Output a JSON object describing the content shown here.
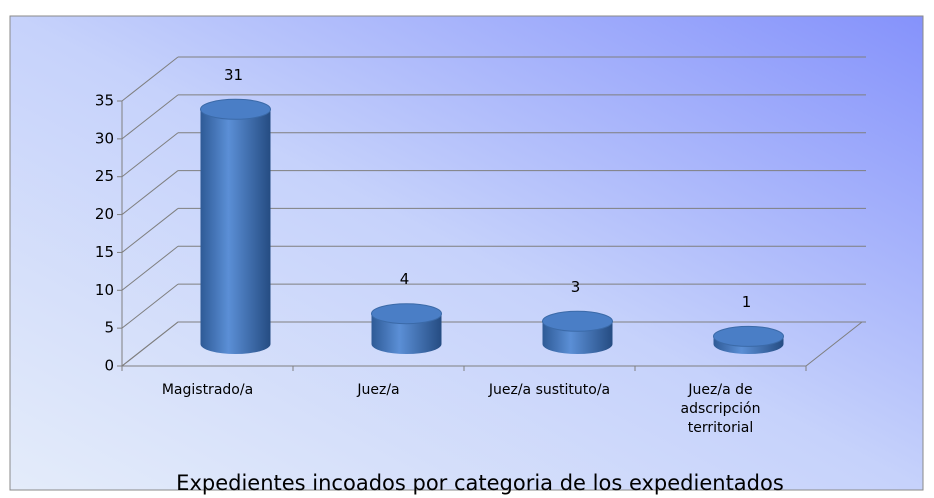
{
  "chart_data": {
    "type": "bar3d-cylinder",
    "title": "Expedientes incoados por categoria de los expedientados",
    "categories": [
      "Magistrado/a",
      "Juez/a",
      "Juez/a sustituto/a",
      "Juez/a de adscripción territorial"
    ],
    "values": [
      31,
      4,
      3,
      1
    ],
    "color": "#4f81bd",
    "ylim": [
      0,
      35
    ],
    "yticks": [
      0,
      5,
      10,
      15,
      20,
      25,
      30,
      35
    ],
    "grid": true
  }
}
